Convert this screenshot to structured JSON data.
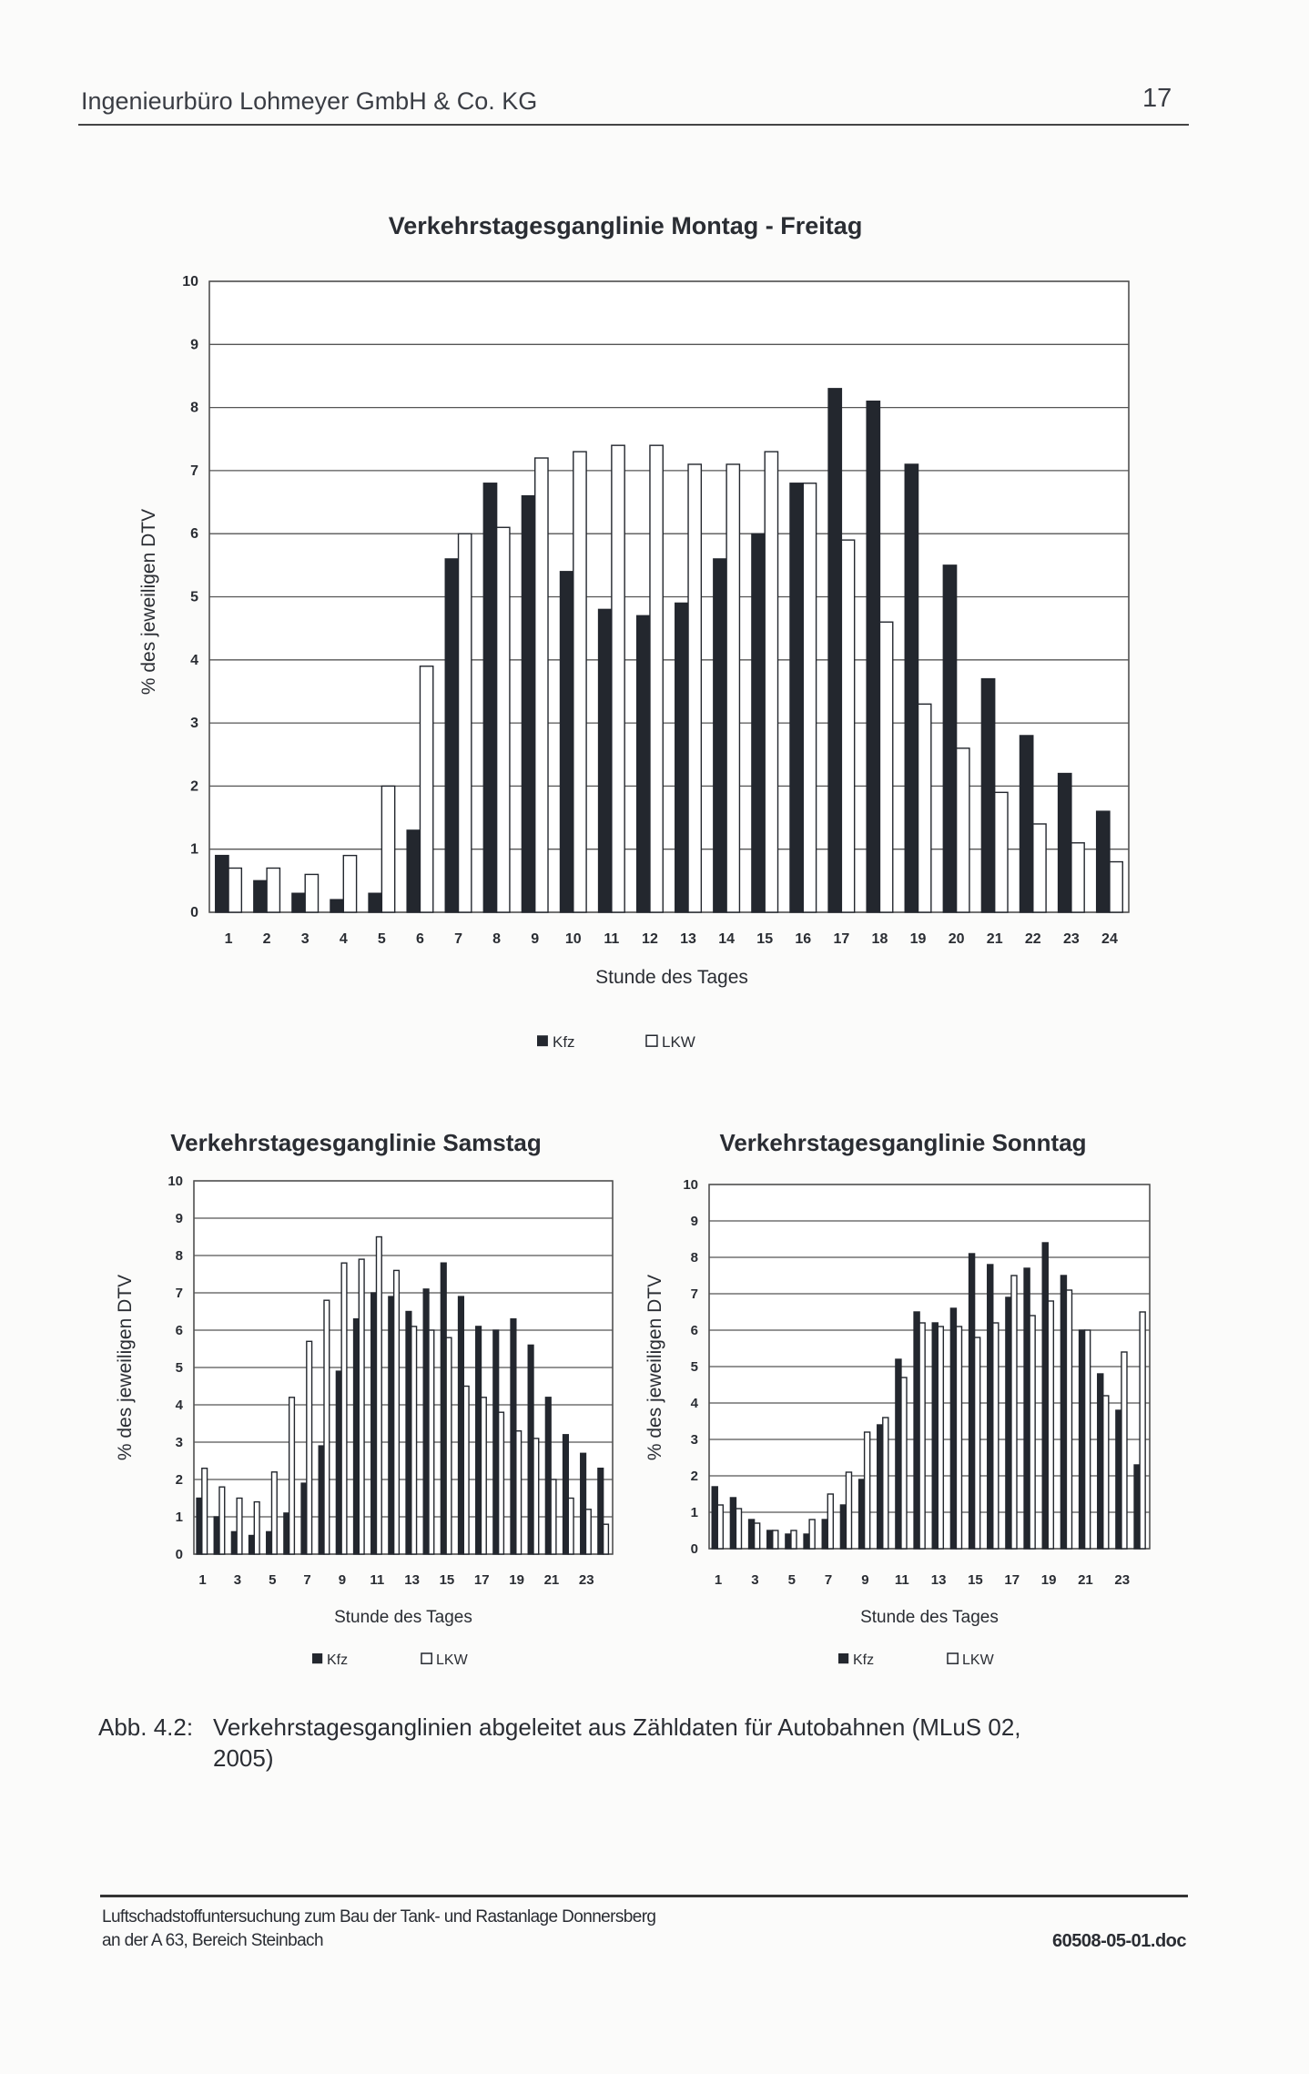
{
  "header": {
    "company": "Ingenieurbüro Lohmeyer GmbH & Co. KG",
    "page_number": "17"
  },
  "colors": {
    "kfz": "#23272e",
    "lkw": "#ffffff",
    "grid": "#555555"
  },
  "chart_data": [
    {
      "type": "bar",
      "title": "Verkehrstagesganglinie Montag - Freitag",
      "xlabel": "Stunde des Tages",
      "ylabel": "% des jeweiligen DTV",
      "ylim": [
        0,
        10
      ],
      "yticks": [
        "0",
        "1",
        "2",
        "3",
        "4",
        "5",
        "6",
        "7",
        "8",
        "9",
        "10"
      ],
      "grid": true,
      "legend": "bottom",
      "categories": [
        "1",
        "2",
        "3",
        "4",
        "5",
        "6",
        "7",
        "8",
        "9",
        "10",
        "11",
        "12",
        "13",
        "14",
        "15",
        "16",
        "17",
        "18",
        "19",
        "20",
        "21",
        "22",
        "23",
        "24"
      ],
      "xtick_labels": [
        "1",
        "2",
        "3",
        "4",
        "5",
        "6",
        "7",
        "8",
        "9",
        "10",
        "11",
        "12",
        "13",
        "14",
        "15",
        "16",
        "17",
        "18",
        "19",
        "20",
        "21",
        "22",
        "23",
        "24"
      ],
      "series": [
        {
          "name": "Kfz",
          "values": [
            0.9,
            0.5,
            0.3,
            0.2,
            0.3,
            1.3,
            5.6,
            6.8,
            6.6,
            5.4,
            4.8,
            4.7,
            4.9,
            5.6,
            6.0,
            6.8,
            8.3,
            8.1,
            7.1,
            5.5,
            3.7,
            2.8,
            2.2,
            1.6
          ]
        },
        {
          "name": "LKW",
          "values": [
            0.7,
            0.7,
            0.6,
            0.9,
            2.0,
            3.9,
            6.0,
            6.1,
            7.2,
            7.3,
            7.4,
            7.4,
            7.1,
            7.1,
            7.3,
            6.8,
            5.9,
            4.6,
            3.3,
            2.6,
            1.9,
            1.4,
            1.1,
            0.8
          ]
        }
      ]
    },
    {
      "type": "bar",
      "title": "Verkehrstagesganglinie Samstag",
      "xlabel": "Stunde des Tages",
      "ylabel": "% des jeweiligen DTV",
      "ylim": [
        0,
        10
      ],
      "yticks": [
        "0",
        "1",
        "2",
        "3",
        "4",
        "5",
        "6",
        "7",
        "8",
        "9",
        "10"
      ],
      "grid": true,
      "legend": "bottom",
      "categories": [
        "1",
        "2",
        "3",
        "4",
        "5",
        "6",
        "7",
        "8",
        "9",
        "10",
        "11",
        "12",
        "13",
        "14",
        "15",
        "16",
        "17",
        "18",
        "19",
        "20",
        "21",
        "22",
        "23",
        "24"
      ],
      "xtick_labels": [
        "1",
        "3",
        "5",
        "7",
        "9",
        "11",
        "13",
        "15",
        "17",
        "19",
        "21",
        "23"
      ],
      "series": [
        {
          "name": "Kfz",
          "values": [
            1.5,
            1.0,
            0.6,
            0.5,
            0.6,
            1.1,
            1.9,
            2.9,
            4.9,
            6.3,
            7.0,
            6.9,
            6.5,
            7.1,
            7.8,
            6.9,
            6.1,
            6.0,
            6.3,
            5.6,
            4.2,
            3.2,
            2.7,
            2.3
          ]
        },
        {
          "name": "LKW",
          "values": [
            2.3,
            1.8,
            1.5,
            1.4,
            2.2,
            4.2,
            5.7,
            6.8,
            7.8,
            7.9,
            8.5,
            7.6,
            6.1,
            6.0,
            5.8,
            4.5,
            4.2,
            3.8,
            3.3,
            3.1,
            2.0,
            1.5,
            1.2,
            0.8
          ]
        }
      ]
    },
    {
      "type": "bar",
      "title": "Verkehrstagesganglinie Sonntag",
      "xlabel": "Stunde des Tages",
      "ylabel": "% des jeweiligen DTV",
      "ylim": [
        0,
        10
      ],
      "yticks": [
        "0",
        "1",
        "2",
        "3",
        "4",
        "5",
        "6",
        "7",
        "8",
        "9",
        "10"
      ],
      "grid": true,
      "legend": "bottom",
      "categories": [
        "1",
        "2",
        "3",
        "4",
        "5",
        "6",
        "7",
        "8",
        "9",
        "10",
        "11",
        "12",
        "13",
        "14",
        "15",
        "16",
        "17",
        "18",
        "19",
        "20",
        "21",
        "22",
        "23",
        "24"
      ],
      "xtick_labels": [
        "1",
        "3",
        "5",
        "7",
        "9",
        "11",
        "13",
        "15",
        "17",
        "19",
        "21",
        "23"
      ],
      "series": [
        {
          "name": "Kfz",
          "values": [
            1.7,
            1.4,
            0.8,
            0.5,
            0.4,
            0.4,
            0.8,
            1.2,
            1.9,
            3.4,
            5.2,
            6.5,
            6.2,
            6.6,
            8.1,
            7.8,
            6.9,
            7.7,
            8.4,
            7.5,
            6.0,
            4.8,
            3.8,
            2.3
          ]
        },
        {
          "name": "LKW",
          "values": [
            1.2,
            1.1,
            0.7,
            0.5,
            0.5,
            0.8,
            1.5,
            2.1,
            3.2,
            3.6,
            4.7,
            6.2,
            6.1,
            6.1,
            5.8,
            6.2,
            7.5,
            6.4,
            6.8,
            7.1,
            6.0,
            4.2,
            5.4,
            6.5
          ]
        }
      ]
    }
  ],
  "caption": {
    "label": "Abb. 4.2:",
    "line1": "Verkehrstagesganglinien abgeleitet aus Zähldaten für Autobahnen (MLuS 02,",
    "line2": "2005)"
  },
  "footer": {
    "line1": "Luftschadstoffuntersuchung zum Bau der Tank- und Rastanlage Donnersberg",
    "line2": "an der A 63, Bereich Steinbach",
    "doc": "60508-05-01.doc"
  }
}
